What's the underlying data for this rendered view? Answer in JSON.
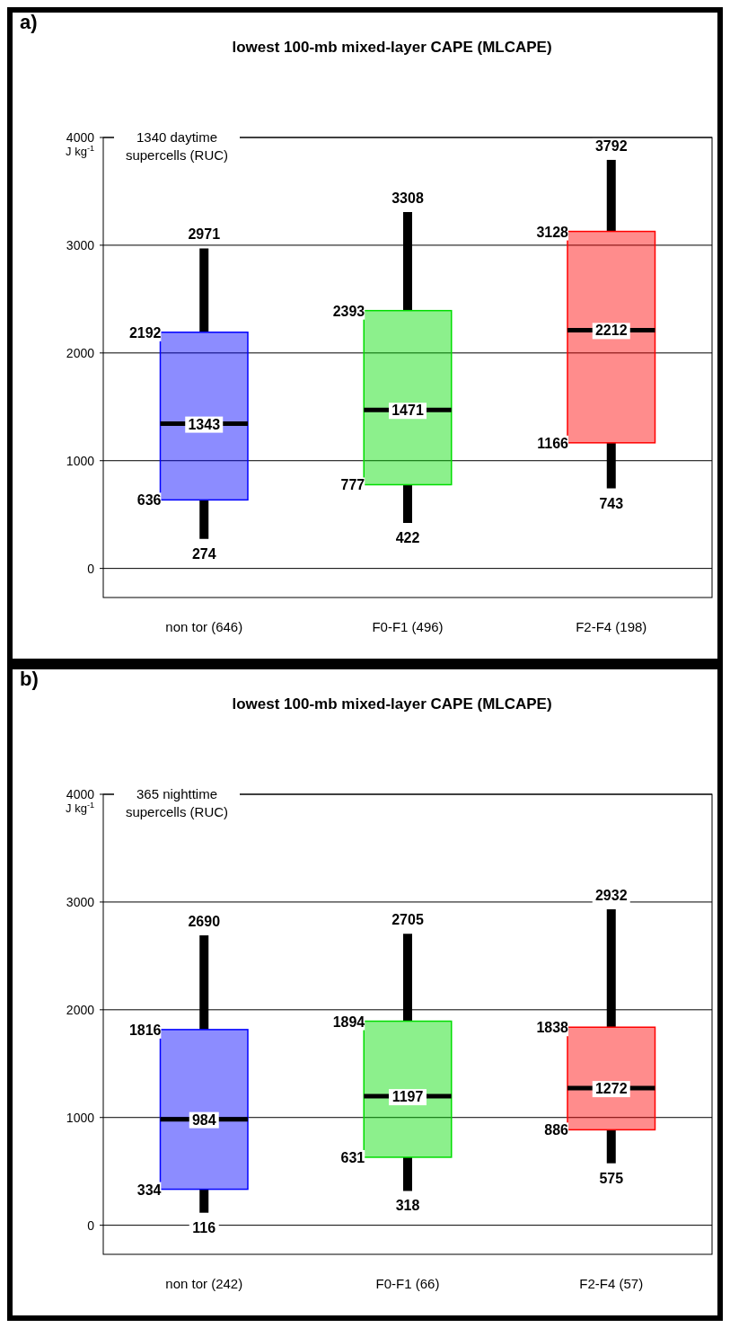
{
  "chart_data": [
    {
      "type": "box",
      "title": "a)",
      "subtitle": "lowest 100-mb mixed-layer CAPE (MLCAPE)",
      "ylabel": "J kg$^{-1}$",
      "categories": [
        "non tor (646)",
        "F0-F1 (496)",
        "F2-F4 (198)"
      ],
      "boxes": [
        {
          "low": 274,
          "q1": 636,
          "median": 1343,
          "q3": 2192,
          "high": 2971
        },
        {
          "low": 422,
          "q1": 777,
          "median": 1471,
          "q3": 2393,
          "high": 3308
        },
        {
          "low": 743,
          "q1": 1166,
          "median": 2212,
          "q3": 3128,
          "high": 3792
        }
      ],
      "colors": [
        "#0000ff",
        "#00dd00",
        "#ff0000"
      ],
      "ylim": [
        -270,
        4000
      ],
      "yticks": [
        0,
        1000,
        2000,
        3000,
        4000
      ],
      "grid": "y",
      "annotations": [
        "1340 daytime supercells (RUC)",
        {
          "text": "274",
          "x": "non tor (646)",
          "y": 274
        },
        {
          "text": "636",
          "x": "non tor (646)",
          "y": 636
        },
        {
          "text": "1343",
          "x": "non tor (646)",
          "y": 1343
        },
        {
          "text": "2192",
          "x": "non tor (646)",
          "y": 2192
        },
        {
          "text": "2971",
          "x": "non tor (646)",
          "y": 2971
        },
        {
          "text": "422",
          "x": "F0-F1 (496)",
          "y": 422
        },
        {
          "text": "777",
          "x": "F0-F1 (496)",
          "y": 777
        },
        {
          "text": "1471",
          "x": "F0-F1 (496)",
          "y": 1471
        },
        {
          "text": "2393",
          "x": "F0-F1 (496)",
          "y": 2393
        },
        {
          "text": "3308",
          "x": "F0-F1 (496)",
          "y": 3308
        },
        {
          "text": "743",
          "x": "F2-F4 (198)",
          "y": 743
        },
        {
          "text": "1166",
          "x": "F2-F4 (198)",
          "y": 1166
        },
        {
          "text": "2212",
          "x": "F2-F4 (198)",
          "y": 2212
        },
        {
          "text": "3128",
          "x": "F2-F4 (198)",
          "y": 3128
        },
        {
          "text": "3792",
          "x": "F2-F4 (198)",
          "y": 3792
        }
      ]
    },
    {
      "type": "box",
      "title": "b)",
      "subtitle": "lowest 100-mb mixed-layer CAPE (MLCAPE)",
      "ylabel": "J kg$^{-1}$",
      "categories": [
        "non tor (242)",
        "F0-F1 (66)",
        "F2-F4 (57)"
      ],
      "boxes": [
        {
          "low": 116,
          "q1": 334,
          "median": 984,
          "q3": 1816,
          "high": 2690
        },
        {
          "low": 318,
          "q1": 631,
          "median": 1197,
          "q3": 1894,
          "high": 2705
        },
        {
          "low": 575,
          "q1": 886,
          "median": 1272,
          "q3": 1838,
          "high": 2932
        }
      ],
      "colors": [
        "#0000ff",
        "#00dd00",
        "#ff0000"
      ],
      "ylim": [
        -270,
        4000
      ],
      "yticks": [
        0,
        1000,
        2000,
        3000,
        4000
      ],
      "grid": "y",
      "annotations": [
        "365 nighttime supercells (RUC)",
        {
          "text": "116",
          "x": "non tor (242)",
          "y": 116
        },
        {
          "text": "334",
          "x": "non tor (242)",
          "y": 334
        },
        {
          "text": "984",
          "x": "non tor (242)",
          "y": 984
        },
        {
          "text": "1816",
          "x": "non tor (242)",
          "y": 1816
        },
        {
          "text": "2690",
          "x": "non tor (242)",
          "y": 2690
        },
        {
          "text": "318",
          "x": "F0-F1 (66)",
          "y": 318
        },
        {
          "text": "631",
          "x": "F0-F1 (66)",
          "y": 631
        },
        {
          "text": "1197",
          "x": "F0-F1 (66)",
          "y": 1197
        },
        {
          "text": "1894",
          "x": "F0-F1 (66)",
          "y": 1894
        },
        {
          "text": "2705",
          "x": "F0-F1 (66)",
          "y": 2705
        },
        {
          "text": "575",
          "x": "F2-F4 (57)",
          "y": 575
        },
        {
          "text": "886",
          "x": "F2-F4 (57)",
          "y": 886
        },
        {
          "text": "1272",
          "x": "F2-F4 (57)",
          "y": 1272
        },
        {
          "text": "1838",
          "x": "F2-F4 (57)",
          "y": 1838
        },
        {
          "text": "2932",
          "x": "F2-F4 (57)",
          "y": 2932
        }
      ]
    }
  ]
}
